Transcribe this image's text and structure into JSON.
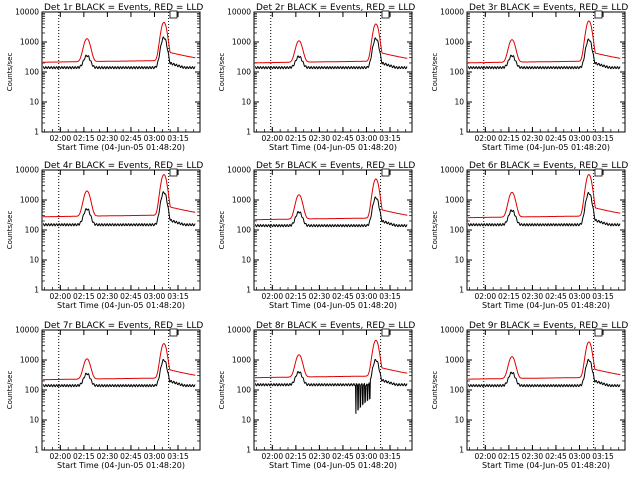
{
  "window_title": "",
  "colors": {
    "events": "#000000",
    "lld": "#e00000",
    "axes": "#000000",
    "background": "#ffffff"
  },
  "chart_data": [
    {
      "type": "line",
      "title": "Det 1r BLACK = Events, RED = LLD",
      "xlabel": "Start Time (04-Jun-05 01:48:20)",
      "ylabel": "Counts/sec",
      "yscale": "log",
      "ylim": [
        1,
        10000
      ],
      "xlim": [
        "01:48:20",
        "03:29:00"
      ],
      "x_ticks": [
        "02:00",
        "02:15",
        "02:30",
        "02:45",
        "03:00",
        "03:15"
      ],
      "y_ticks": [
        "1",
        "10",
        "100",
        "1000",
        "10000"
      ],
      "vlines": [
        "01:59:00",
        "03:09:00"
      ],
      "grid": false,
      "legend": "none",
      "peaks": {
        "t1": "02:17:00",
        "t2": "03:06:00",
        "lld_base": 230,
        "lld_peak1": 1300,
        "lld_peak2": 4500,
        "ev_base": 140,
        "ev_peak1": 350,
        "ev_peak2": 1400
      },
      "series": [
        {
          "name": "BLACK = Events"
        },
        {
          "name": "RED = LLD"
        }
      ]
    },
    {
      "type": "line",
      "title": "Det 2r BLACK = Events, RED = LLD",
      "xlabel": "Start Time (04-Jun-05 01:48:20)",
      "ylabel": "Counts/sec",
      "yscale": "log",
      "ylim": [
        1,
        10000
      ],
      "xlim": [
        "01:48:20",
        "03:29:00"
      ],
      "x_ticks": [
        "02:00",
        "02:15",
        "02:30",
        "02:45",
        "03:00",
        "03:15"
      ],
      "y_ticks": [
        "1",
        "10",
        "100",
        "1000",
        "10000"
      ],
      "vlines": [
        "01:59:00",
        "03:09:00"
      ],
      "grid": false,
      "legend": "none",
      "peaks": {
        "t1": "02:17:00",
        "t2": "03:06:00",
        "lld_base": 220,
        "lld_peak1": 1100,
        "lld_peak2": 4000,
        "ev_base": 140,
        "ev_peak1": 330,
        "ev_peak2": 1300
      },
      "series": [
        {
          "name": "BLACK = Events"
        },
        {
          "name": "RED = LLD"
        }
      ]
    },
    {
      "type": "line",
      "title": "Det 3r BLACK = Events, RED = LLD",
      "xlabel": "Start Time (04-Jun-05 01:48:20)",
      "ylabel": "Counts/sec",
      "yscale": "log",
      "ylim": [
        1,
        10000
      ],
      "xlim": [
        "01:48:20",
        "03:29:00"
      ],
      "x_ticks": [
        "02:00",
        "02:15",
        "02:30",
        "02:45",
        "03:00",
        "03:15"
      ],
      "y_ticks": [
        "1",
        "10",
        "100",
        "1000",
        "10000"
      ],
      "vlines": [
        "01:59:00",
        "03:09:00"
      ],
      "grid": false,
      "legend": "none",
      "peaks": {
        "t1": "02:17:00",
        "t2": "03:06:00",
        "lld_base": 220,
        "lld_peak1": 1200,
        "lld_peak2": 5000,
        "ev_base": 140,
        "ev_peak1": 350,
        "ev_peak2": 1200
      },
      "series": [
        {
          "name": "BLACK = Events"
        },
        {
          "name": "RED = LLD"
        }
      ]
    },
    {
      "type": "line",
      "title": "Det 4r BLACK = Events, RED = LLD",
      "xlabel": "Start Time (04-Jun-05 01:48:20)",
      "ylabel": "Counts/sec",
      "yscale": "log",
      "ylim": [
        1,
        10000
      ],
      "xlim": [
        "01:48:20",
        "03:29:00"
      ],
      "x_ticks": [
        "02:00",
        "02:15",
        "02:30",
        "02:45",
        "03:00",
        "03:15"
      ],
      "y_ticks": [
        "1",
        "10",
        "100",
        "1000",
        "10000"
      ],
      "vlines": [
        "01:59:00",
        "03:09:00"
      ],
      "grid": false,
      "legend": "none",
      "peaks": {
        "t1": "02:17:00",
        "t2": "03:06:00",
        "lld_base": 300,
        "lld_peak1": 2000,
        "lld_peak2": 7000,
        "ev_base": 150,
        "ev_peak1": 500,
        "ev_peak2": 1800
      },
      "series": [
        {
          "name": "BLACK = Events"
        },
        {
          "name": "RED = LLD"
        }
      ]
    },
    {
      "type": "line",
      "title": "Det 5r BLACK = Events, RED = LLD",
      "xlabel": "Start Time (04-Jun-05 01:48:20)",
      "ylabel": "Counts/sec",
      "yscale": "log",
      "ylim": [
        1,
        10000
      ],
      "xlim": [
        "01:48:20",
        "03:29:00"
      ],
      "x_ticks": [
        "02:00",
        "02:15",
        "02:30",
        "02:45",
        "03:00",
        "03:15"
      ],
      "y_ticks": [
        "1",
        "10",
        "100",
        "1000",
        "10000"
      ],
      "vlines": [
        "01:59:00",
        "03:09:00"
      ],
      "grid": false,
      "legend": "none",
      "peaks": {
        "t1": "02:17:00",
        "t2": "03:06:00",
        "lld_base": 240,
        "lld_peak1": 1500,
        "lld_peak2": 5000,
        "ev_base": 140,
        "ev_peak1": 400,
        "ev_peak2": 1200
      },
      "series": [
        {
          "name": "BLACK = Events"
        },
        {
          "name": "RED = LLD"
        }
      ]
    },
    {
      "type": "line",
      "title": "Det 6r BLACK = Events, RED = LLD",
      "xlabel": "Start Time (04-Jun-05 01:48:20)",
      "ylabel": "Counts/sec",
      "yscale": "log",
      "ylim": [
        1,
        10000
      ],
      "xlim": [
        "01:48:20",
        "03:29:00"
      ],
      "x_ticks": [
        "02:00",
        "02:15",
        "02:30",
        "02:45",
        "03:00",
        "03:15"
      ],
      "y_ticks": [
        "1",
        "10",
        "100",
        "1000",
        "10000"
      ],
      "vlines": [
        "01:59:00",
        "03:09:00"
      ],
      "grid": false,
      "legend": "none",
      "peaks": {
        "t1": "02:17:00",
        "t2": "03:06:00",
        "lld_base": 280,
        "lld_peak1": 1800,
        "lld_peak2": 7000,
        "ev_base": 150,
        "ev_peak1": 450,
        "ev_peak2": 1700
      },
      "series": [
        {
          "name": "BLACK = Events"
        },
        {
          "name": "RED = LLD"
        }
      ]
    },
    {
      "type": "line",
      "title": "Det 7r BLACK = Events, RED = LLD",
      "xlabel": "Start Time (04-Jun-05 01:48:20)",
      "ylabel": "Counts/sec",
      "yscale": "log",
      "ylim": [
        1,
        10000
      ],
      "xlim": [
        "01:48:20",
        "03:29:00"
      ],
      "x_ticks": [
        "02:00",
        "02:15",
        "02:30",
        "02:45",
        "03:00",
        "03:15"
      ],
      "y_ticks": [
        "1",
        "10",
        "100",
        "1000",
        "10000"
      ],
      "vlines": [
        "01:59:00",
        "03:09:00"
      ],
      "grid": false,
      "legend": "none",
      "peaks": {
        "t1": "02:17:00",
        "t2": "03:06:00",
        "lld_base": 240,
        "lld_peak1": 1100,
        "lld_peak2": 3500,
        "ev_base": 140,
        "ev_peak1": 350,
        "ev_peak2": 1000
      },
      "series": [
        {
          "name": "BLACK = Events"
        },
        {
          "name": "RED = LLD"
        }
      ]
    },
    {
      "type": "line",
      "title": "Det 8r BLACK = Events, RED = LLD",
      "xlabel": "Start Time (04-Jun-05 01:48:20)",
      "ylabel": "Counts/sec",
      "yscale": "log",
      "ylim": [
        1,
        10000
      ],
      "xlim": [
        "01:48:20",
        "03:29:00"
      ],
      "x_ticks": [
        "02:00",
        "02:15",
        "02:30",
        "02:45",
        "03:00",
        "03:15"
      ],
      "y_ticks": [
        "1",
        "10",
        "100",
        "1000",
        "10000"
      ],
      "vlines": [
        "01:59:00",
        "03:09:00"
      ],
      "grid": false,
      "legend": "none",
      "peaks": {
        "t1": "02:17:00",
        "t2": "03:06:00",
        "lld_base": 280,
        "lld_peak1": 1500,
        "lld_peak2": 4500,
        "ev_base": 150,
        "ev_peak1": 400,
        "ev_peak2": 1000,
        "dropout_start": "02:53:00",
        "dropout_min": 15
      },
      "series": [
        {
          "name": "BLACK = Events"
        },
        {
          "name": "RED = LLD"
        }
      ]
    },
    {
      "type": "line",
      "title": "Det 9r BLACK = Events, RED = LLD",
      "xlabel": "Start Time (04-Jun-05 01:48:20)",
      "ylabel": "Counts/sec",
      "yscale": "log",
      "ylim": [
        1,
        10000
      ],
      "xlim": [
        "01:48:20",
        "03:29:00"
      ],
      "x_ticks": [
        "02:00",
        "02:15",
        "02:30",
        "02:45",
        "03:00",
        "03:15"
      ],
      "y_ticks": [
        "1",
        "10",
        "100",
        "1000",
        "10000"
      ],
      "vlines": [
        "01:59:00",
        "03:09:00"
      ],
      "grid": false,
      "legend": "none",
      "peaks": {
        "t1": "02:17:00",
        "t2": "03:06:00",
        "lld_base": 250,
        "lld_peak1": 1300,
        "lld_peak2": 4000,
        "ev_base": 140,
        "ev_peak1": 380,
        "ev_peak2": 1000
      },
      "series": [
        {
          "name": "BLACK = Events"
        },
        {
          "name": "RED = LLD"
        }
      ]
    }
  ]
}
